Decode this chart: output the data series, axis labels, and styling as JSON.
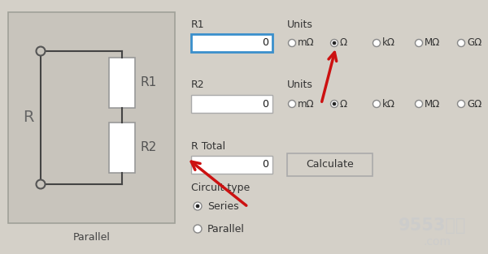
{
  "bg_color": "#d4d0c8",
  "circuit_panel_color": "#c8c4bc",
  "circuit_border_color": "#a0a098",
  "white": "#ffffff",
  "dark_text": "#1a1a1a",
  "gray_text": "#444444",
  "blue_border": "#3a8fcc",
  "arrow_color": "#cc1111",
  "radio_options": [
    "mΩ",
    "Ω",
    "kΩ",
    "MΩ",
    "GΩ"
  ],
  "parallel_label": "Parallel",
  "r_label": "R",
  "r1_label": "R1",
  "r2_label": "R2",
  "field_r1": "R1",
  "field_r2": "R2",
  "field_rtotal": "R Total",
  "units_label": "Units",
  "calculate_btn": "Calculate",
  "circuit_type_label": "Circuit type",
  "series_label": "Series",
  "parallel_radio": "Parallel"
}
